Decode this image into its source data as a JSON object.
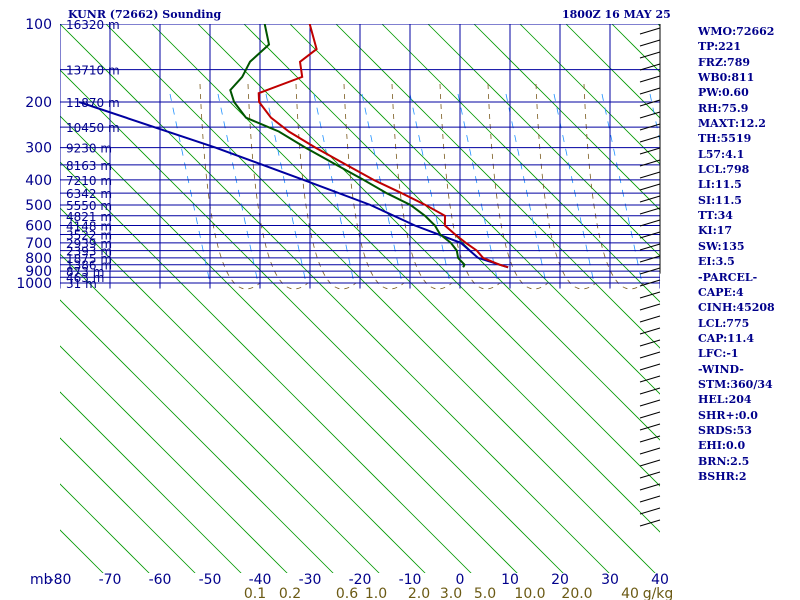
{
  "header": {
    "title": "KUNR (72662) Sounding",
    "valid_time": "1800Z 16 MAY 25"
  },
  "indices": [
    "WMO:72662",
    "TP:221",
    "FRZ:789",
    "WB0:811",
    "PW:0.60",
    "RH:75.9",
    "MAXT:12.2",
    "TH:5519",
    "L57:4.1",
    "LCL:798",
    "LI:11.5",
    "SI:11.5",
    "TT:34",
    "KI:17",
    "SW:135",
    "EI:3.5",
    "-PARCEL-",
    "CAPE:4",
    "CINH:45208",
    "LCL:775",
    "CAP:11.4",
    "LFC:-1",
    "-WIND-",
    "STM:360/34",
    "HEL:204",
    "SHR+:0.0",
    "SRDS:53",
    "EHI:0.0",
    "BRN:2.5",
    "BSHR:2"
  ],
  "colors": {
    "grid": "#0000a0",
    "dry_adiabat": "#009900",
    "mixing_ratio": "#1e90ff",
    "moist_adiabat": "#7a5a1e",
    "temperature": "#c00000",
    "dewpoint": "#005500",
    "parcel": "#0000a0",
    "axis_text": "#00008b",
    "mixing_text": "#6b5a14",
    "wind": "#000000"
  },
  "chart_data": {
    "type": "skew-t",
    "pressure_label": "mb",
    "pressure_levels": [
      100,
      200,
      300,
      400,
      500,
      600,
      700,
      800,
      900,
      1000
    ],
    "temperature_ticks": [
      -80,
      -70,
      -60,
      -50,
      -40,
      -30,
      -20,
      -10,
      0,
      10,
      20,
      30,
      40
    ],
    "height_labels": [
      {
        "p": 100,
        "label": "16320 m"
      },
      {
        "p": 150,
        "label": "13710 m"
      },
      {
        "p": 200,
        "label": "11870 m"
      },
      {
        "p": 250,
        "label": "10450 m"
      },
      {
        "p": 300,
        "label": "9230 m"
      },
      {
        "p": 350,
        "label": "8163 m"
      },
      {
        "p": 400,
        "label": "7210 m"
      },
      {
        "p": 450,
        "label": "6342 m"
      },
      {
        "p": 500,
        "label": "5550 m"
      },
      {
        "p": 550,
        "label": "4821 m"
      },
      {
        "p": 600,
        "label": "4148 m"
      },
      {
        "p": 650,
        "label": "3522 m"
      },
      {
        "p": 700,
        "label": "2939 m"
      },
      {
        "p": 750,
        "label": "2393 m"
      },
      {
        "p": 800,
        "label": "1875 m"
      },
      {
        "p": 850,
        "label": "1386 m"
      },
      {
        "p": 900,
        "label": "873 m"
      },
      {
        "p": 950,
        "label": "463 m"
      },
      {
        "p": 1000,
        "label": "31 m"
      }
    ],
    "mixing_ratio_labels": [
      "0.1",
      "0.2",
      "0.6",
      "1.0",
      "2.0",
      "3.0",
      "5.0",
      "10.0",
      "20.0",
      "40",
      "g/kg"
    ],
    "temperature_profile": [
      {
        "p": 100,
        "t": -57
      },
      {
        "p": 125,
        "t": -53
      },
      {
        "p": 140,
        "t": -55
      },
      {
        "p": 160,
        "t": -53
      },
      {
        "p": 185,
        "t": -60
      },
      {
        "p": 200,
        "t": -59
      },
      {
        "p": 230,
        "t": -55
      },
      {
        "p": 260,
        "t": -50
      },
      {
        "p": 300,
        "t": -43
      },
      {
        "p": 350,
        "t": -35
      },
      {
        "p": 400,
        "t": -28
      },
      {
        "p": 450,
        "t": -21
      },
      {
        "p": 500,
        "t": -15
      },
      {
        "p": 550,
        "t": -10
      },
      {
        "p": 600,
        "t": -9
      },
      {
        "p": 650,
        "t": -6
      },
      {
        "p": 700,
        "t": -3
      },
      {
        "p": 750,
        "t": 0
      },
      {
        "p": 800,
        "t": 2
      },
      {
        "p": 850,
        "t": 6
      },
      {
        "p": 870,
        "t": 8
      }
    ],
    "dewpoint_profile": [
      {
        "p": 100,
        "t": -66
      },
      {
        "p": 120,
        "t": -63
      },
      {
        "p": 140,
        "t": -65
      },
      {
        "p": 160,
        "t": -65
      },
      {
        "p": 180,
        "t": -66
      },
      {
        "p": 200,
        "t": -64
      },
      {
        "p": 230,
        "t": -60
      },
      {
        "p": 260,
        "t": -52
      },
      {
        "p": 300,
        "t": -45
      },
      {
        "p": 350,
        "t": -37
      },
      {
        "p": 400,
        "t": -30
      },
      {
        "p": 450,
        "t": -24
      },
      {
        "p": 500,
        "t": -18
      },
      {
        "p": 550,
        "t": -14
      },
      {
        "p": 600,
        "t": -11
      },
      {
        "p": 650,
        "t": -9
      },
      {
        "p": 700,
        "t": -6
      },
      {
        "p": 750,
        "t": -4
      },
      {
        "p": 800,
        "t": -3
      },
      {
        "p": 850,
        "t": -1
      },
      {
        "p": 870,
        "t": -1
      }
    ],
    "parcel_profile": [
      {
        "p": 870,
        "t": 8
      },
      {
        "p": 800,
        "t": 1
      },
      {
        "p": 700,
        "t": -4
      },
      {
        "p": 600,
        "t": -15
      },
      {
        "p": 500,
        "t": -26
      },
      {
        "p": 400,
        "t": -42
      },
      {
        "p": 300,
        "t": -63
      },
      {
        "p": 200,
        "t": -95
      }
    ]
  }
}
